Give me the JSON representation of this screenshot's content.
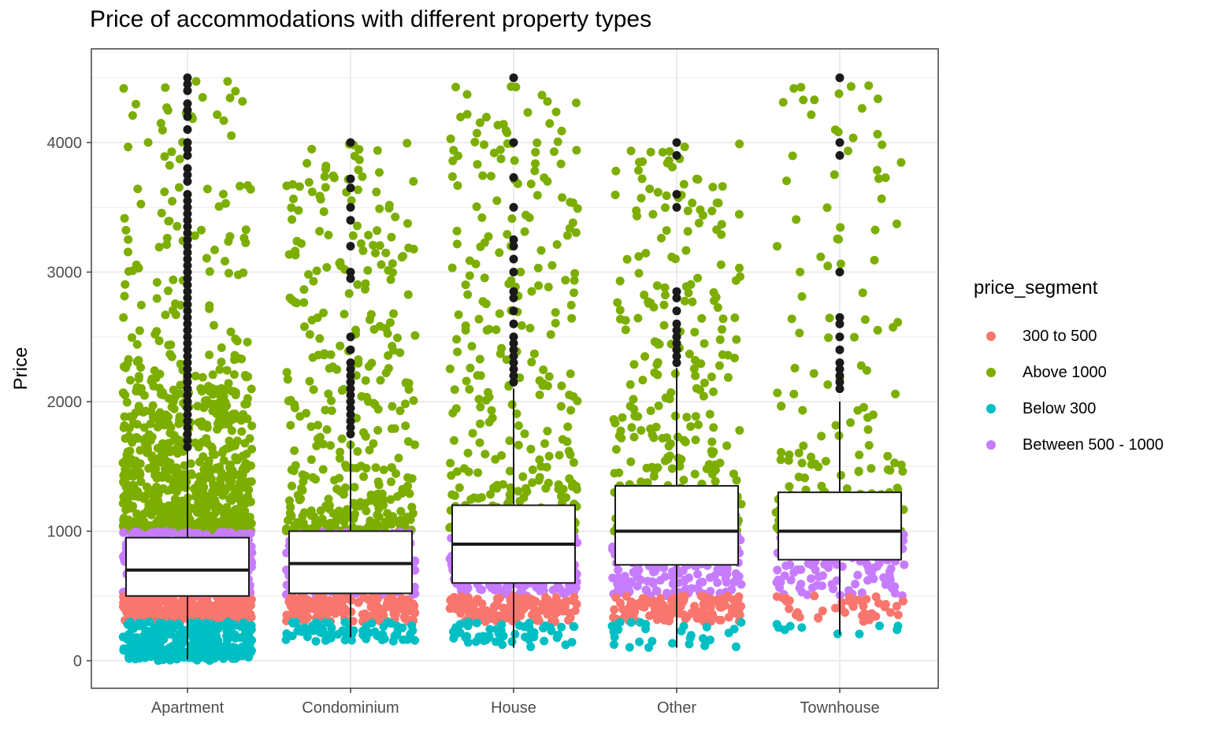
{
  "chart_data": {
    "type": "boxplot-jitter",
    "title": "Price of accommodations with different property types",
    "xlabel": "",
    "ylabel": "Price",
    "ylim": [
      -200,
      4700
    ],
    "yticks": [
      0,
      1000,
      2000,
      3000,
      4000
    ],
    "categories": [
      "Apartment",
      "Condominium",
      "House",
      "Other",
      "Townhouse"
    ],
    "boxes": [
      {
        "category": "Apartment",
        "min": 10,
        "q1": 500,
        "median": 700,
        "q3": 950,
        "max": 1620
      },
      {
        "category": "Condominium",
        "min": 180,
        "q1": 520,
        "median": 750,
        "q3": 1000,
        "max": 1700
      },
      {
        "category": "House",
        "min": 100,
        "q1": 600,
        "median": 900,
        "q3": 1200,
        "max": 2100
      },
      {
        "category": "Other",
        "min": 100,
        "q1": 740,
        "median": 1000,
        "q3": 1350,
        "max": 2260
      },
      {
        "category": "Townhouse",
        "min": 200,
        "q1": 780,
        "median": 1000,
        "q3": 1300,
        "max": 2000
      }
    ],
    "outliers": [
      {
        "category": "Apartment",
        "values": [
          1650,
          1700,
          1750,
          1800,
          1850,
          1900,
          1950,
          2000,
          2050,
          2100,
          2150,
          2200,
          2250,
          2300,
          2350,
          2400,
          2450,
          2500,
          2550,
          2600,
          2650,
          2700,
          2750,
          2800,
          2850,
          2900,
          2950,
          3000,
          3050,
          3100,
          3150,
          3200,
          3250,
          3300,
          3350,
          3400,
          3450,
          3500,
          3550,
          3600,
          3700,
          3750,
          3800,
          3900,
          3950,
          4000,
          4100,
          4200,
          4250,
          4300,
          4400,
          4450,
          4500
        ]
      },
      {
        "category": "Condominium",
        "values": [
          1750,
          1800,
          1850,
          1900,
          1950,
          2000,
          2050,
          2100,
          2150,
          2200,
          2250,
          2300,
          2400,
          2500,
          2950,
          3000,
          3200,
          3400,
          3500,
          3650,
          3720,
          4000
        ]
      },
      {
        "category": "House",
        "values": [
          2150,
          2200,
          2250,
          2300,
          2350,
          2400,
          2450,
          2500,
          2600,
          2700,
          2800,
          2850,
          3000,
          3100,
          3200,
          3250,
          3500,
          3730,
          4000,
          4500
        ]
      },
      {
        "category": "Other",
        "values": [
          2300,
          2350,
          2400,
          2450,
          2500,
          2550,
          2600,
          2700,
          2800,
          2850,
          3500,
          3600,
          3900,
          4000
        ]
      },
      {
        "category": "Townhouse",
        "values": [
          2100,
          2150,
          2200,
          2250,
          2300,
          2400,
          2500,
          2600,
          2650,
          3000,
          3900,
          4000,
          4500
        ]
      }
    ],
    "legend": {
      "title": "price_segment",
      "placement": "right",
      "items": [
        {
          "label": "300 to 500",
          "color": "#F8766D"
        },
        {
          "label": "Above 1000",
          "color": "#7CAE00"
        },
        {
          "label": "Below 300",
          "color": "#00BFC4"
        },
        {
          "label": "Between 500 - 1000",
          "color": "#C77CFF"
        }
      ]
    },
    "jitter_points": [
      {
        "category": "Apartment",
        "segment": "Above 1000",
        "y_range": [
          1000,
          2050
        ],
        "count": 700
      },
      {
        "category": "Apartment",
        "segment": "Above 1000",
        "y_range": [
          2050,
          4500
        ],
        "count": 170
      },
      {
        "category": "Apartment",
        "segment": "Between 500 - 1000",
        "y_range": [
          500,
          1000
        ],
        "count": 450
      },
      {
        "category": "Apartment",
        "segment": "300 to 500",
        "y_range": [
          300,
          500
        ],
        "count": 320
      },
      {
        "category": "Apartment",
        "segment": "Below 300",
        "y_range": [
          0,
          300
        ],
        "count": 300
      },
      {
        "category": "Condominium",
        "segment": "Above 1000",
        "y_range": [
          1000,
          4000
        ],
        "count": 360
      },
      {
        "category": "Condominium",
        "segment": "Between 500 - 1000",
        "y_range": [
          500,
          1000
        ],
        "count": 220
      },
      {
        "category": "Condominium",
        "segment": "300 to 500",
        "y_range": [
          300,
          500
        ],
        "count": 170
      },
      {
        "category": "Condominium",
        "segment": "Below 300",
        "y_range": [
          150,
          300
        ],
        "count": 70
      },
      {
        "category": "House",
        "segment": "Above 1000",
        "y_range": [
          1000,
          4500
        ],
        "count": 340
      },
      {
        "category": "House",
        "segment": "Between 500 - 1000",
        "y_range": [
          500,
          1000
        ],
        "count": 200
      },
      {
        "category": "House",
        "segment": "300 to 500",
        "y_range": [
          300,
          500
        ],
        "count": 140
      },
      {
        "category": "House",
        "segment": "Below 300",
        "y_range": [
          100,
          300
        ],
        "count": 55
      },
      {
        "category": "Other",
        "segment": "Above 1000",
        "y_range": [
          1000,
          4000
        ],
        "count": 320
      },
      {
        "category": "Other",
        "segment": "Between 500 - 1000",
        "y_range": [
          500,
          1000
        ],
        "count": 190
      },
      {
        "category": "Other",
        "segment": "300 to 500",
        "y_range": [
          300,
          500
        ],
        "count": 120
      },
      {
        "category": "Other",
        "segment": "Below 300",
        "y_range": [
          100,
          300
        ],
        "count": 30
      },
      {
        "category": "Townhouse",
        "segment": "Above 1000",
        "y_range": [
          1000,
          4500
        ],
        "count": 170
      },
      {
        "category": "Townhouse",
        "segment": "Between 500 - 1000",
        "y_range": [
          500,
          1000
        ],
        "count": 110
      },
      {
        "category": "Townhouse",
        "segment": "300 to 500",
        "y_range": [
          300,
          500
        ],
        "count": 40
      },
      {
        "category": "Townhouse",
        "segment": "Below 300",
        "y_range": [
          200,
          300
        ],
        "count": 10
      }
    ],
    "grid": true,
    "theme": "bw"
  }
}
